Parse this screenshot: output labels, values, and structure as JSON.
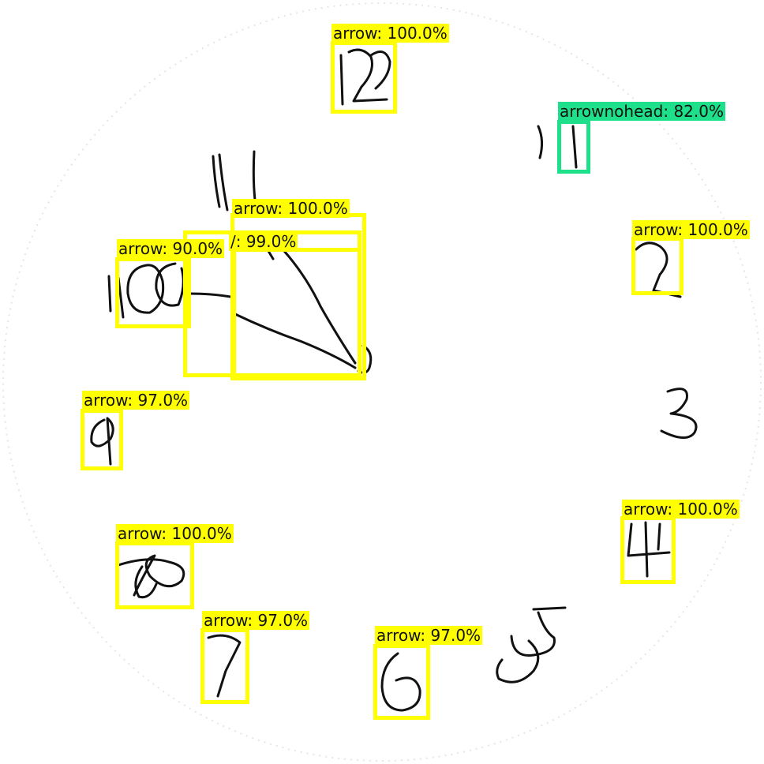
{
  "detections": [
    {
      "id": "twelve",
      "label": "arrow: 100.0%",
      "color": "yellow"
    },
    {
      "id": "one",
      "label": "arrownohead: 82.0%",
      "color": "green"
    },
    {
      "id": "two",
      "label": "arrow: 100.0%",
      "color": "yellow"
    },
    {
      "id": "hands-large",
      "label": "arrow: 100.0%",
      "color": "yellow"
    },
    {
      "id": "hands-mid",
      "label": "/: 99.0%",
      "color": "yellow"
    },
    {
      "id": "ten",
      "label": "arrow: 90.0%",
      "color": "yellow"
    },
    {
      "id": "nine",
      "label": "arrow: 97.0%",
      "color": "yellow"
    },
    {
      "id": "four",
      "label": "arrow: 100.0%",
      "color": "yellow"
    },
    {
      "id": "eight",
      "label": "arrow: 100.0%",
      "color": "yellow"
    },
    {
      "id": "seven",
      "label": "arrow: 97.0%",
      "color": "yellow"
    },
    {
      "id": "six",
      "label": "arrow: 97.0%",
      "color": "yellow"
    }
  ],
  "colors": {
    "yellow": "#ffff00",
    "green": "#1fe08a",
    "ink": "#111111"
  }
}
